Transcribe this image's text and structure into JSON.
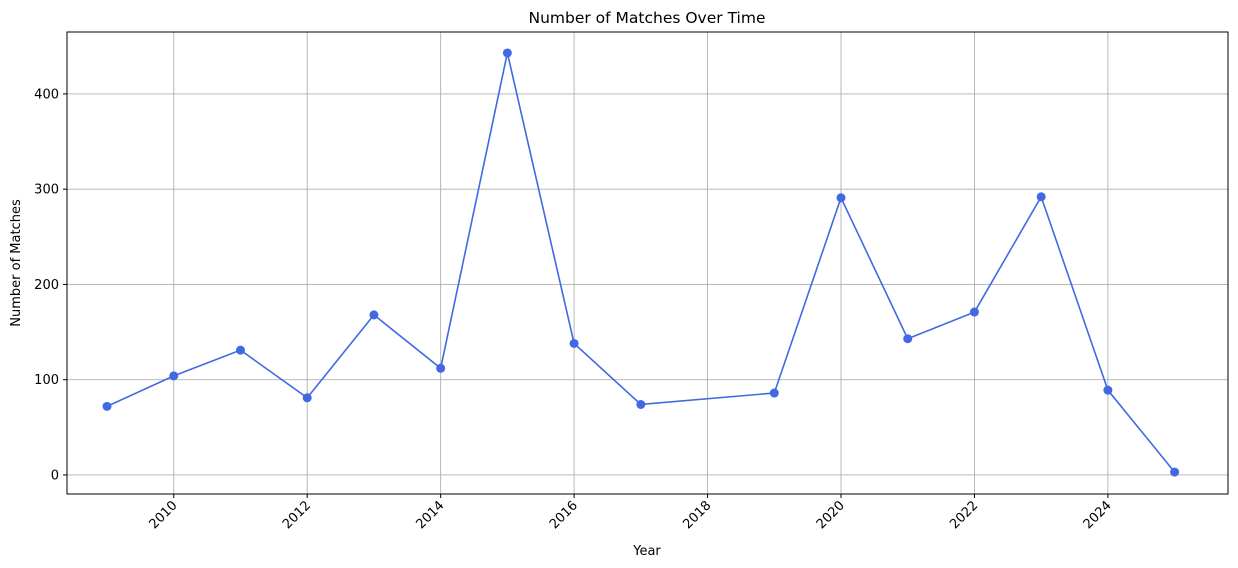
{
  "chart_data": {
    "type": "line",
    "title": "Number of Matches Over Time",
    "xlabel": "Year",
    "ylabel": "Number of Matches",
    "xlim": [
      2008.4,
      2025.8
    ],
    "ylim": [
      -20,
      465
    ],
    "xticks": [
      2010,
      2012,
      2014,
      2016,
      2018,
      2020,
      2022,
      2024
    ],
    "yticks": [
      0,
      100,
      200,
      300,
      400
    ],
    "grid": true,
    "series": [
      {
        "color": "#4169e1",
        "marker": "circle",
        "x": [
          2009,
          2010,
          2011,
          2012,
          2013,
          2014,
          2015,
          2016,
          2017,
          2019,
          2020,
          2021,
          2022,
          2023,
          2024,
          2025
        ],
        "y": [
          72,
          104,
          131,
          81,
          168,
          112,
          443,
          138,
          74,
          86,
          291,
          143,
          171,
          292,
          89,
          3
        ]
      }
    ]
  }
}
